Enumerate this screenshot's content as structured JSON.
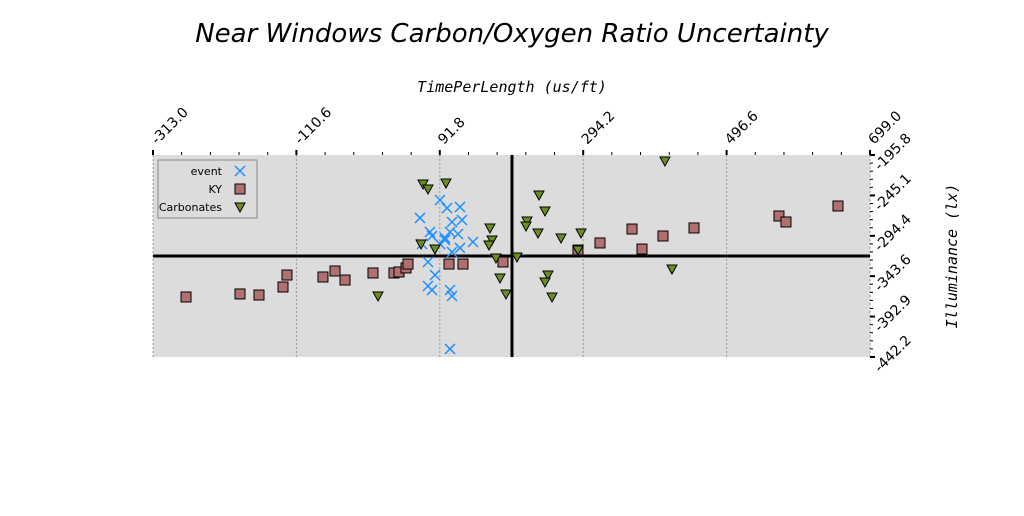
{
  "chart_data": {
    "type": "scatter",
    "title": "Near Windows Carbon/Oxygen Ratio Uncertainty",
    "x_label": "TimePerLength (us/ft)",
    "y_label": "Illuminance (lx)",
    "xlim": [
      -313.0,
      699.0
    ],
    "ylim": [
      -442.2,
      -195.8
    ],
    "xticks": [
      {
        "value": -313.0,
        "label": "-313.0"
      },
      -110.6,
      91.8,
      294.2,
      496.6,
      {
        "value": 699.0,
        "label": "699.0"
      }
    ],
    "yticks": [
      -195.8,
      -245.1,
      -294.4,
      -343.6,
      -392.9,
      -442.2
    ],
    "grid": true,
    "legend": "upper left",
    "reference_lines": {
      "x": 193.7,
      "y": -319.0
    },
    "series": [
      {
        "name": "event",
        "color": "#1e90ff",
        "marker": "x",
        "x": [
          63.8,
          77.9,
          92.1,
          102.0,
          120.3,
          109.0,
          123.1,
          106.2,
          117.5,
          99.1,
          92.1,
          66.7,
          80.8,
          138.6,
          120.3,
          109.0,
          75.1,
          85.0,
          75.1,
          80.8,
          106.2,
          109.0,
          106.2,
          99.1
        ],
        "values": [
          -272.6,
          -289.7,
          -250.7,
          -260.5,
          -259.2,
          -277.5,
          -275.1,
          -289.7,
          -292.2,
          -299.5,
          -304.4,
          -304.4,
          -294.6,
          -301.9,
          -309.2,
          -314.1,
          -326.3,
          -342.2,
          -355.6,
          -360.5,
          -360.5,
          -367.8,
          -432.4,
          -297.0
        ]
      },
      {
        "name": "KY",
        "color": "#b07070",
        "marker": "s",
        "x": [
          -266.4,
          -190.2,
          -163.4,
          -129.5,
          -123.9,
          -73.1,
          -56.1,
          -42.0,
          -2.5,
          27.1,
          34.2,
          44.1,
          46.9,
          104.8,
          124.5,
          181.0,
          286.8,
          317.9,
          363.1,
          377.2,
          406.8,
          450.6,
          570.5,
          580.4,
          653.8
        ],
        "values": [
          -369.0,
          -365.3,
          -366.6,
          -356.8,
          -342.2,
          -344.6,
          -337.3,
          -348.3,
          -339.7,
          -339.7,
          -338.5,
          -333.6,
          -328.8,
          -328.8,
          -328.8,
          -326.3,
          -311.7,
          -303.1,
          -286.1,
          -310.5,
          -294.6,
          -284.8,
          -270.2,
          -277.5,
          -258.0
        ]
      },
      {
        "name": "Carbonates",
        "color": "#6b8e23",
        "marker": "v",
        "x": [
          409.6,
          68.1,
          100.5,
          75.1,
          231.8,
          240.3,
          214.9,
          213.5,
          162.6,
          230.4,
          291.1,
          262.9,
          165.5,
          65.3,
          161.2,
          85.0,
          286.8,
          200.7,
          171.1,
          176.8,
          244.5,
          240.3,
          185.2,
          4.6,
          250.2,
          419.5
        ],
        "values": [
          -203.1,
          -231.2,
          -230.0,
          -237.3,
          -244.6,
          -264.1,
          -276.3,
          -282.4,
          -284.8,
          -290.9,
          -290.9,
          -297.0,
          -299.5,
          -304.4,
          -305.6,
          -310.5,
          -311.7,
          -320.2,
          -321.4,
          -345.8,
          -342.2,
          -350.7,
          -365.3,
          -367.8,
          -369.0,
          -334.9
        ]
      }
    ]
  }
}
